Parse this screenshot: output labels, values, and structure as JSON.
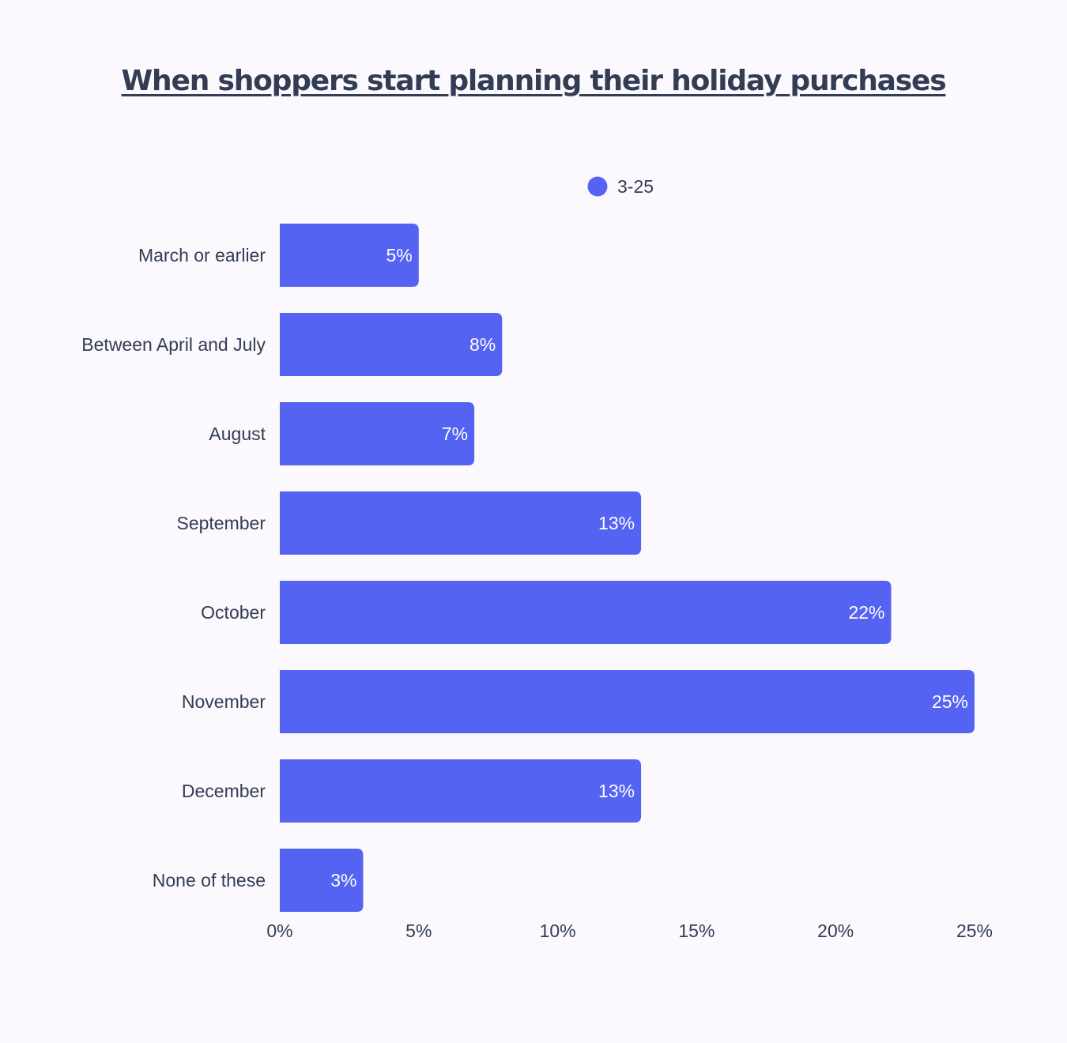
{
  "chart_data": {
    "type": "bar",
    "orientation": "horizontal",
    "title": "When shoppers start planning their holiday purchases",
    "categories": [
      "March or earlier",
      "Between April and July",
      "August",
      "September",
      "October",
      "November",
      "December",
      "None of these"
    ],
    "series": [
      {
        "name": "3-25",
        "values": [
          5,
          8,
          7,
          13,
          22,
          25,
          13,
          3
        ],
        "value_labels": [
          "5%",
          "8%",
          "7%",
          "13%",
          "22%",
          "25%",
          "13%",
          "3%"
        ],
        "color": "#5563f2"
      }
    ],
    "x_ticks": [
      "0%",
      "5%",
      "10%",
      "15%",
      "20%",
      "25%"
    ],
    "xlim": [
      0,
      25
    ],
    "grid": false,
    "legend": "top-center"
  }
}
